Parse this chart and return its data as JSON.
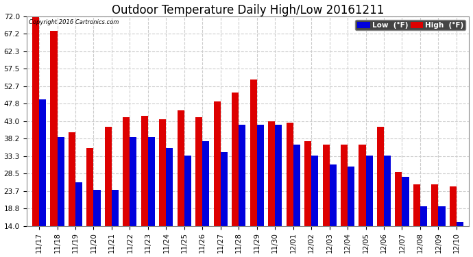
{
  "title": "Outdoor Temperature Daily High/Low 20161211",
  "copyright": "Copyright 2016 Cartronics.com",
  "dates": [
    "11/17",
    "11/18",
    "11/19",
    "11/20",
    "11/21",
    "11/22",
    "11/23",
    "11/24",
    "11/25",
    "11/26",
    "11/27",
    "11/28",
    "11/29",
    "11/30",
    "12/01",
    "12/02",
    "12/03",
    "12/04",
    "12/05",
    "12/06",
    "12/07",
    "12/08",
    "12/09",
    "12/10"
  ],
  "high_temps": [
    72.0,
    68.0,
    40.0,
    35.5,
    41.5,
    44.0,
    44.5,
    43.5,
    46.0,
    44.0,
    48.5,
    51.0,
    54.5,
    43.0,
    42.5,
    37.5,
    36.5,
    36.5,
    36.5,
    41.5,
    29.0,
    25.5,
    25.5,
    25.0
  ],
  "low_temps": [
    49.0,
    38.5,
    26.0,
    24.0,
    24.0,
    38.5,
    38.5,
    35.5,
    33.5,
    37.5,
    34.5,
    42.0,
    42.0,
    42.0,
    36.5,
    33.5,
    31.0,
    30.5,
    33.5,
    33.5,
    27.5,
    19.5,
    19.5,
    15.0
  ],
  "ylim": [
    14.0,
    72.0
  ],
  "yticks": [
    14.0,
    18.8,
    23.7,
    28.5,
    33.3,
    38.2,
    43.0,
    47.8,
    52.7,
    57.5,
    62.3,
    67.2,
    72.0
  ],
  "bar_color_low": "#0000dd",
  "bar_color_high": "#dd0000",
  "background_color": "#ffffff",
  "grid_color": "#cccccc",
  "title_fontsize": 12,
  "tick_fontsize": 7.5,
  "legend_low_label": "Low  (°F)",
  "legend_high_label": "High  (°F)"
}
